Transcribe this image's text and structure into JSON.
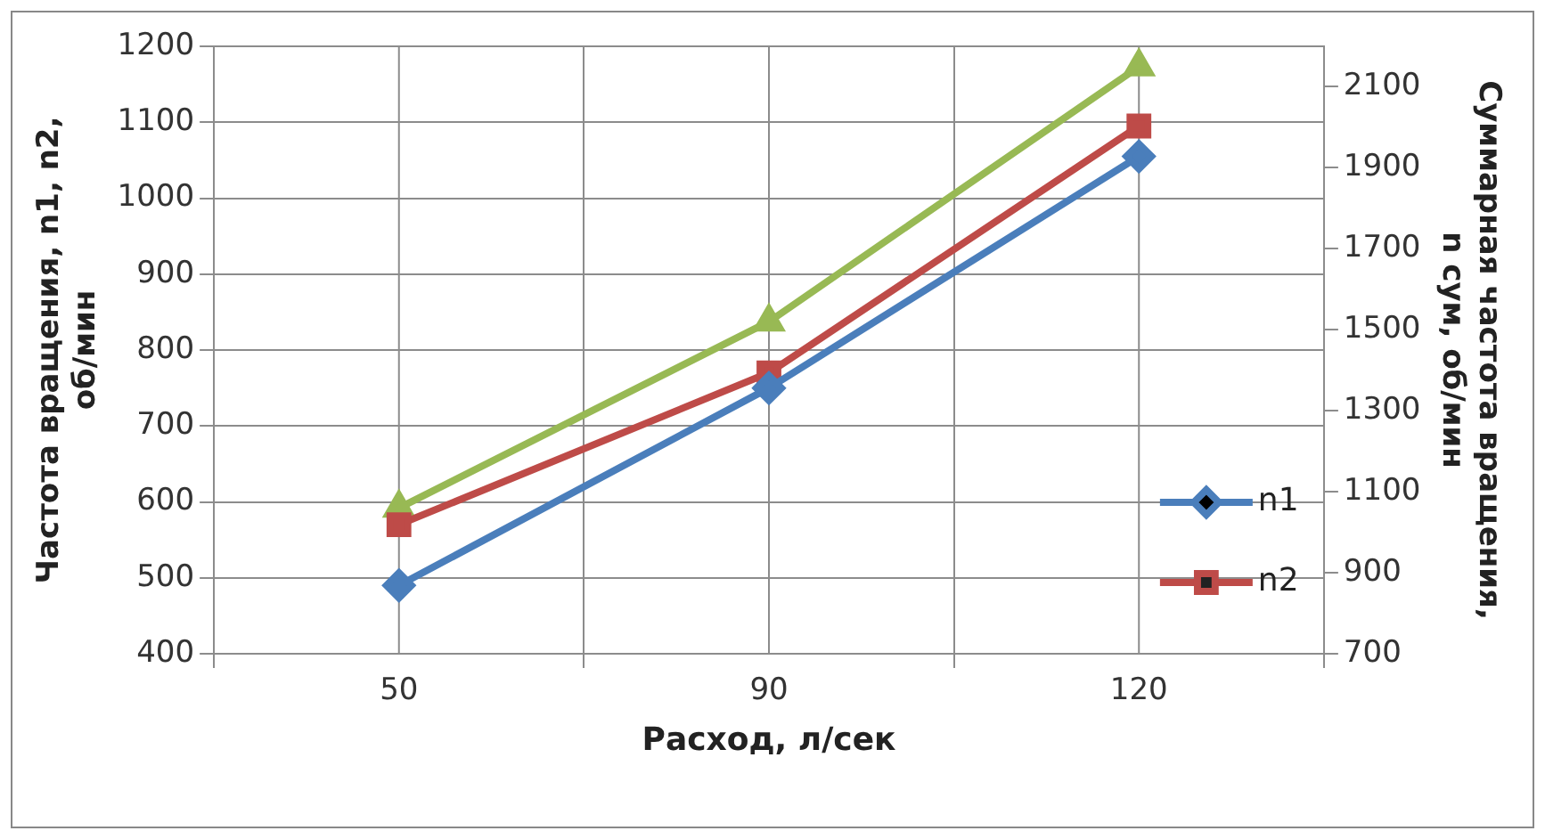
{
  "chart_data": {
    "type": "line",
    "xlabel": "Расход, л/сек",
    "ylabel": "Частота вращения, n1, n2, об/мин",
    "y2label": "Суммарная частота вращения, n сум, об/мин",
    "categories": [
      "50",
      "90",
      "120"
    ],
    "series": [
      {
        "name": "n1",
        "color": "#4a7ebb",
        "values": [
          490,
          750,
          1055
        ],
        "marker": "diamond"
      },
      {
        "name": "n2",
        "color": "#be4b48",
        "values": [
          570,
          770,
          1095
        ],
        "marker": "square"
      },
      {
        "color": "#98b954",
        "values": [
          1060,
          1520,
          2150
        ],
        "marker": "triangle",
        "axis": "y2"
      }
    ],
    "ylim": [
      400,
      1200
    ],
    "yticks": [
      400,
      500,
      600,
      700,
      800,
      900,
      1000,
      1100,
      1200
    ],
    "y2lim": [
      700,
      2200
    ],
    "y2ticks": [
      700,
      900,
      1100,
      1300,
      1500,
      1700,
      1900,
      2100
    ],
    "grid": true,
    "legend": "right",
    "line_style": "solid"
  }
}
